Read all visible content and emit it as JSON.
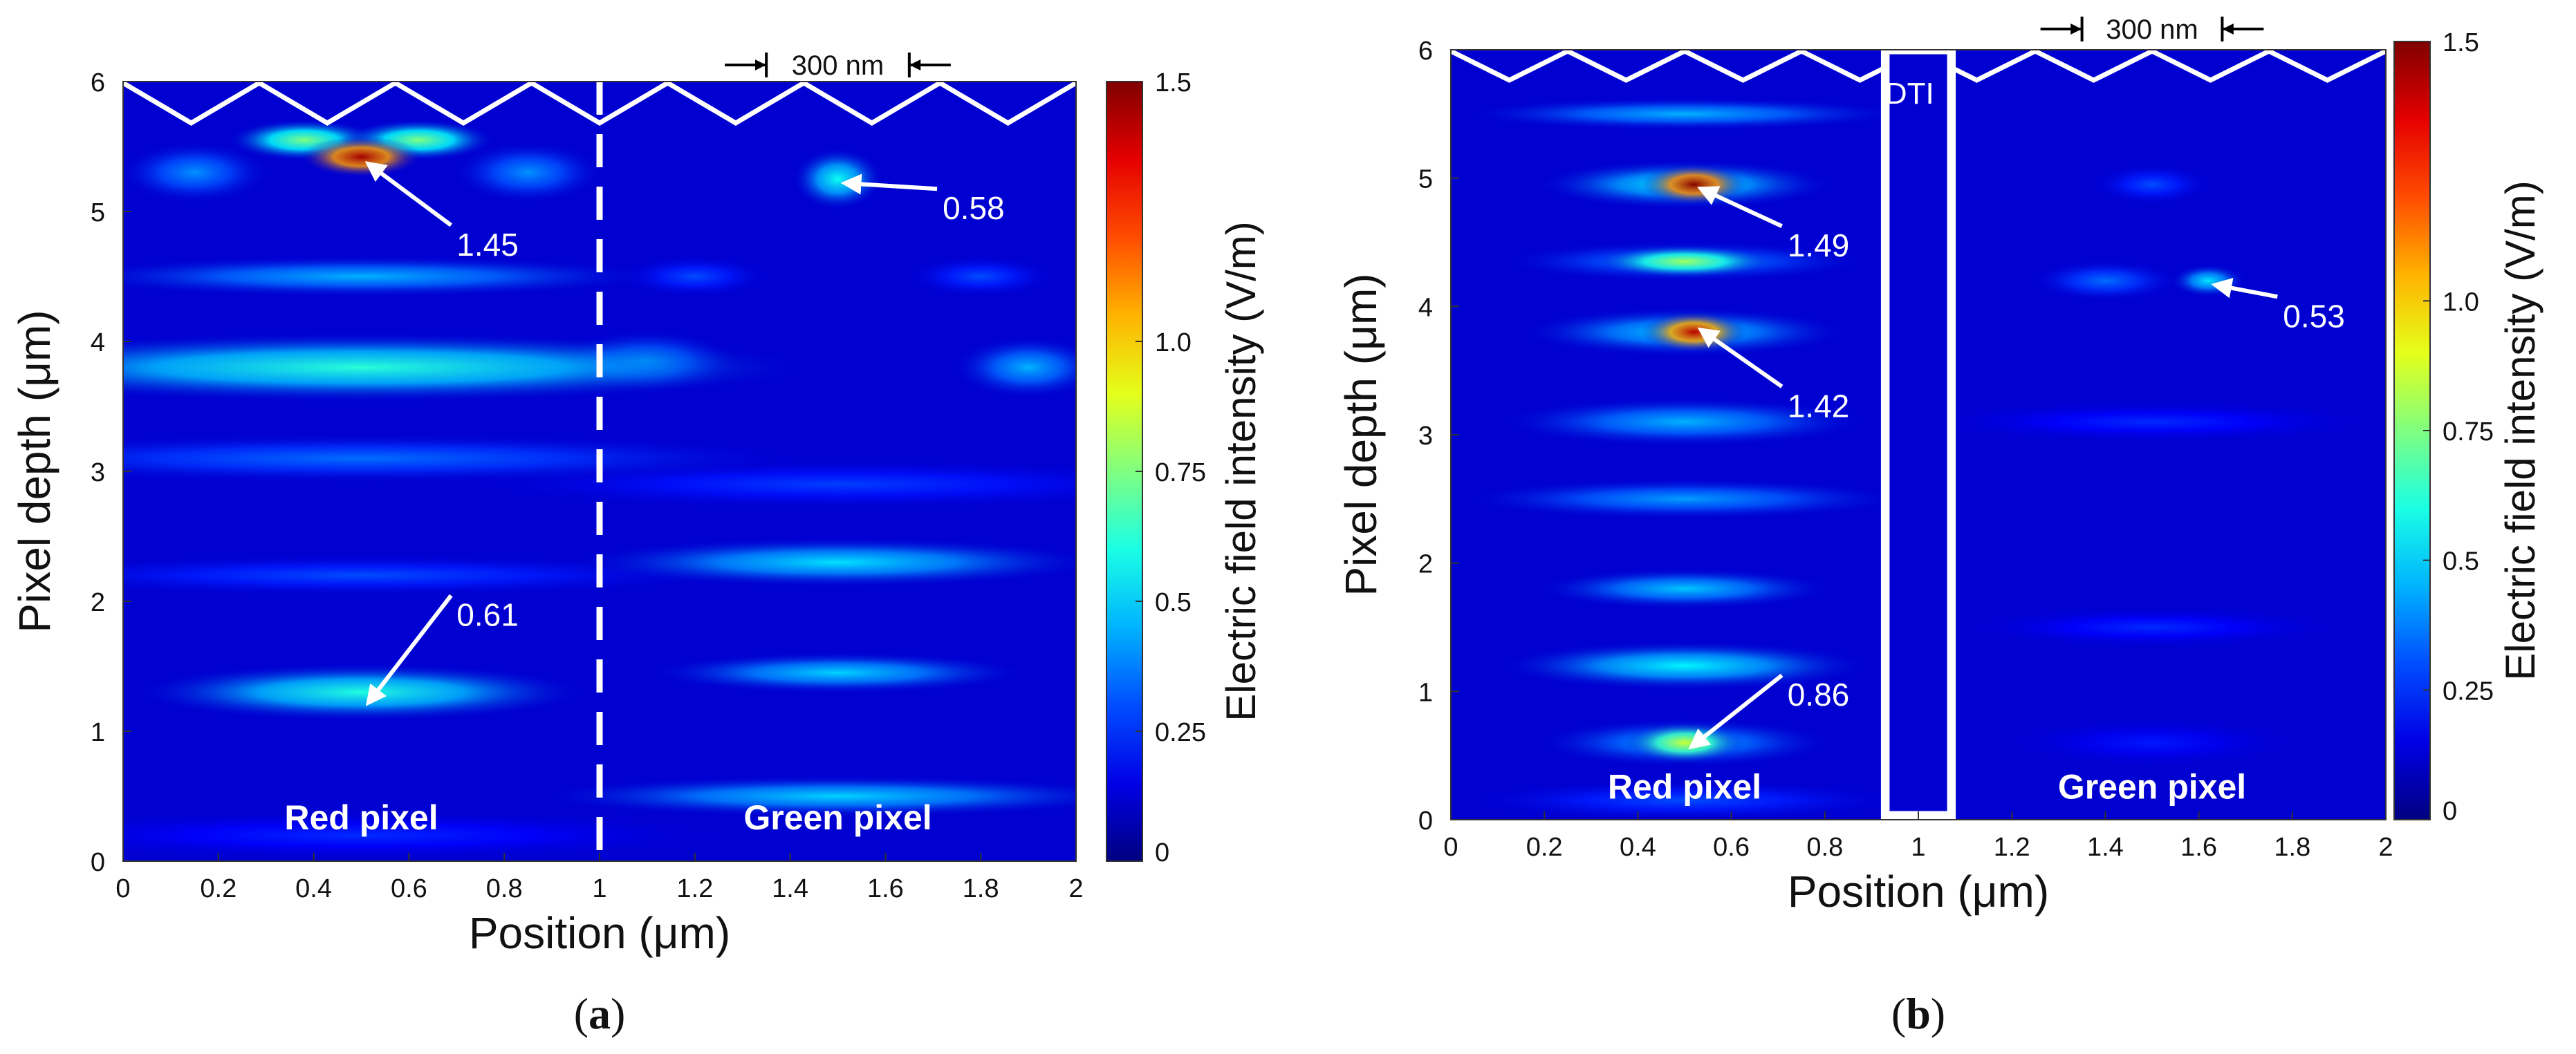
{
  "chart_data": [
    {
      "panel": "(a)",
      "type": "heatmap",
      "title": "",
      "xlabel": "Position (μm)",
      "ylabel": "Pixel depth (μm)",
      "colorbar_label": "Electric field intensity (V/m)",
      "xlim": [
        0,
        2
      ],
      "ylim": [
        0,
        6
      ],
      "clim": [
        0,
        1.5
      ],
      "x_ticks": [
        "0",
        "0.2",
        "0.4",
        "0.6",
        "0.8",
        "1",
        "1.2",
        "1.4",
        "1.6",
        "1.8",
        "2"
      ],
      "y_ticks": [
        "0",
        "1",
        "2",
        "3",
        "4",
        "5",
        "6"
      ],
      "colorbar_ticks": [
        "0",
        "0.25",
        "0.5",
        "0.75",
        "1.0",
        "1.5"
      ],
      "colorbar_tick_values": [
        0,
        0.25,
        0.5,
        0.75,
        1.0,
        1.5
      ],
      "pixel_labels": [
        {
          "text": "Red pixel",
          "x": 0.5,
          "y": 0.33
        },
        {
          "text": "Green pixel",
          "x": 1.5,
          "y": 0.33
        }
      ],
      "scale_bar": {
        "text": "300 nm",
        "x1": 1.35,
        "x2": 1.65
      },
      "divider_x": 1.0,
      "annotations": [
        {
          "text": "1.45",
          "x": 0.5,
          "y": 5.4,
          "label_x": 0.7,
          "label_y": 4.82
        },
        {
          "text": "0.58",
          "x": 1.5,
          "y": 5.25,
          "label_x": 1.72,
          "label_y": 5.1
        },
        {
          "text": "0.61",
          "x": 0.5,
          "y": 1.25,
          "label_x": 0.7,
          "label_y": 1.97
        }
      ],
      "hotspots": [
        {
          "x": 0.5,
          "y": 5.42,
          "value": 1.45,
          "sx": 0.08,
          "sy": 0.1
        },
        {
          "x": 0.38,
          "y": 5.55,
          "value": 0.75,
          "sx": 0.1,
          "sy": 0.1
        },
        {
          "x": 0.62,
          "y": 5.55,
          "value": 0.75,
          "sx": 0.1,
          "sy": 0.1
        },
        {
          "x": 0.15,
          "y": 5.3,
          "value": 0.4,
          "sx": 0.1,
          "sy": 0.15
        },
        {
          "x": 0.85,
          "y": 5.3,
          "value": 0.4,
          "sx": 0.1,
          "sy": 0.15
        },
        {
          "x": 0.5,
          "y": 4.5,
          "value": 0.45,
          "sx": 0.4,
          "sy": 0.1
        },
        {
          "x": 0.5,
          "y": 3.8,
          "value": 0.62,
          "sx": 0.6,
          "sy": 0.17
        },
        {
          "x": 1.9,
          "y": 3.8,
          "value": 0.45,
          "sx": 0.1,
          "sy": 0.15
        },
        {
          "x": 1.1,
          "y": 3.85,
          "value": 0.42,
          "sx": 0.12,
          "sy": 0.15
        },
        {
          "x": 0.5,
          "y": 3.1,
          "value": 0.35,
          "sx": 0.6,
          "sy": 0.12
        },
        {
          "x": 1.5,
          "y": 2.9,
          "value": 0.28,
          "sx": 0.5,
          "sy": 0.12
        },
        {
          "x": 0.5,
          "y": 2.2,
          "value": 0.3,
          "sx": 0.5,
          "sy": 0.1
        },
        {
          "x": 1.5,
          "y": 2.3,
          "value": 0.52,
          "sx": 0.35,
          "sy": 0.12
        },
        {
          "x": 0.5,
          "y": 1.3,
          "value": 0.61,
          "sx": 0.3,
          "sy": 0.14
        },
        {
          "x": 1.5,
          "y": 1.45,
          "value": 0.5,
          "sx": 0.25,
          "sy": 0.1
        },
        {
          "x": 1.5,
          "y": 0.5,
          "value": 0.5,
          "sx": 0.4,
          "sy": 0.1
        },
        {
          "x": 0.5,
          "y": 0.2,
          "value": 0.25,
          "sx": 0.5,
          "sy": 0.12
        },
        {
          "x": 1.5,
          "y": 5.25,
          "value": 0.58,
          "sx": 0.06,
          "sy": 0.15
        },
        {
          "x": 1.2,
          "y": 4.5,
          "value": 0.3,
          "sx": 0.1,
          "sy": 0.1
        },
        {
          "x": 1.8,
          "y": 4.5,
          "value": 0.3,
          "sx": 0.1,
          "sy": 0.1
        }
      ]
    },
    {
      "panel": "(b)",
      "type": "heatmap",
      "title": "",
      "xlabel": "Position (μm)",
      "ylabel": "Pixel depth (μm)",
      "colorbar_label": "Electric field intensity (V/m)",
      "xlim": [
        0,
        2
      ],
      "ylim": [
        0,
        6
      ],
      "clim": [
        0,
        1.5
      ],
      "x_ticks": [
        "0",
        "0.2",
        "0.4",
        "0.6",
        "0.8",
        "1",
        "1.2",
        "1.4",
        "1.6",
        "1.8",
        "2"
      ],
      "y_ticks": [
        "0",
        "1",
        "2",
        "3",
        "4",
        "5",
        "6"
      ],
      "colorbar_ticks": [
        "0",
        "0.25",
        "0.5",
        "0.75",
        "1.0",
        "1.5"
      ],
      "colorbar_tick_values": [
        0,
        0.25,
        0.5,
        0.75,
        1.0,
        1.5
      ],
      "pixel_labels": [
        {
          "text": "Red pixel",
          "x": 0.5,
          "y": 0.25
        },
        {
          "text": "Green pixel",
          "x": 1.5,
          "y": 0.25
        }
      ],
      "scale_bar": {
        "text": "300 nm",
        "x1": 1.35,
        "x2": 1.65
      },
      "dti": {
        "text": "DTI",
        "x1": 0.92,
        "x2": 1.08
      },
      "annotations": [
        {
          "text": "1.49",
          "x": 0.52,
          "y": 4.95,
          "label_x": 0.72,
          "label_y": 4.55
        },
        {
          "text": "1.42",
          "x": 0.52,
          "y": 3.85,
          "label_x": 0.72,
          "label_y": 3.3
        },
        {
          "text": "0.86",
          "x": 0.5,
          "y": 0.6,
          "label_x": 0.72,
          "label_y": 1.05
        },
        {
          "text": "0.53",
          "x": 1.62,
          "y": 4.2,
          "label_x": 1.78,
          "label_y": 4.0
        }
      ],
      "hotspots": [
        {
          "x": 0.5,
          "y": 5.5,
          "value": 0.45,
          "sx": 0.3,
          "sy": 0.08
        },
        {
          "x": 0.52,
          "y": 4.95,
          "value": 1.49,
          "sx": 0.07,
          "sy": 0.1
        },
        {
          "x": 0.5,
          "y": 4.95,
          "value": 0.55,
          "sx": 0.2,
          "sy": 0.12
        },
        {
          "x": 0.5,
          "y": 4.35,
          "value": 0.8,
          "sx": 0.12,
          "sy": 0.08
        },
        {
          "x": 0.5,
          "y": 4.35,
          "value": 0.4,
          "sx": 0.25,
          "sy": 0.1
        },
        {
          "x": 0.52,
          "y": 3.8,
          "value": 1.42,
          "sx": 0.07,
          "sy": 0.1
        },
        {
          "x": 0.5,
          "y": 3.8,
          "value": 0.5,
          "sx": 0.22,
          "sy": 0.12
        },
        {
          "x": 0.5,
          "y": 3.1,
          "value": 0.45,
          "sx": 0.25,
          "sy": 0.12
        },
        {
          "x": 0.5,
          "y": 2.5,
          "value": 0.42,
          "sx": 0.3,
          "sy": 0.1
        },
        {
          "x": 0.5,
          "y": 1.8,
          "value": 0.48,
          "sx": 0.2,
          "sy": 0.1
        },
        {
          "x": 0.5,
          "y": 1.2,
          "value": 0.55,
          "sx": 0.25,
          "sy": 0.12
        },
        {
          "x": 0.5,
          "y": 0.6,
          "value": 0.86,
          "sx": 0.08,
          "sy": 0.1
        },
        {
          "x": 0.5,
          "y": 0.6,
          "value": 0.45,
          "sx": 0.2,
          "sy": 0.12
        },
        {
          "x": 0.5,
          "y": 0.15,
          "value": 0.3,
          "sx": 0.3,
          "sy": 0.1
        },
        {
          "x": 1.5,
          "y": 4.95,
          "value": 0.3,
          "sx": 0.08,
          "sy": 0.1
        },
        {
          "x": 1.4,
          "y": 4.2,
          "value": 0.35,
          "sx": 0.1,
          "sy": 0.1
        },
        {
          "x": 1.62,
          "y": 4.2,
          "value": 0.53,
          "sx": 0.05,
          "sy": 0.08
        },
        {
          "x": 1.5,
          "y": 3.1,
          "value": 0.25,
          "sx": 0.3,
          "sy": 0.1
        },
        {
          "x": 1.5,
          "y": 1.5,
          "value": 0.25,
          "sx": 0.25,
          "sy": 0.1
        },
        {
          "x": 1.5,
          "y": 0.6,
          "value": 0.22,
          "sx": 0.2,
          "sy": 0.12
        }
      ]
    }
  ]
}
